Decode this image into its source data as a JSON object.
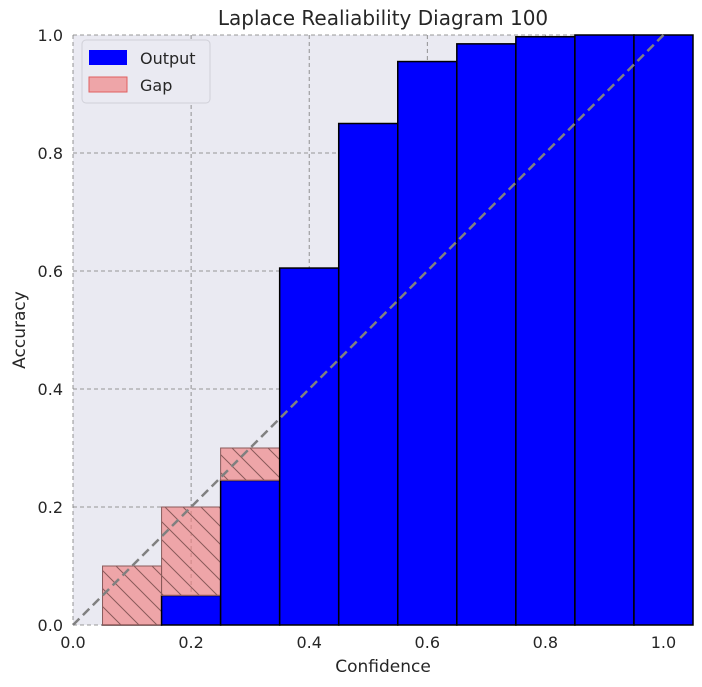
{
  "chart_data": {
    "type": "bar",
    "title": "Laplace Realiability Diagram 100",
    "xlabel": "Confidence",
    "ylabel": "Accuracy",
    "xlim": [
      0.0,
      1.05
    ],
    "ylim": [
      0.0,
      1.0
    ],
    "xticks": [
      "0.0",
      "0.2",
      "0.4",
      "0.6",
      "0.8",
      "1.0"
    ],
    "yticks": [
      "0.0",
      "0.2",
      "0.4",
      "0.6",
      "0.8",
      "1.0"
    ],
    "bin_width": 0.1,
    "bin_centers": [
      0.1,
      0.2,
      0.3,
      0.4,
      0.5,
      0.6,
      0.7,
      0.8,
      0.9,
      1.0
    ],
    "series": [
      {
        "name": "Output",
        "values": [
          0.0,
          0.05,
          0.245,
          0.605,
          0.85,
          0.955,
          0.985,
          0.997,
          1.0,
          1.0
        ],
        "color": "#0000ff"
      },
      {
        "name": "Gap",
        "values": [
          0.1,
          0.15,
          0.055,
          0,
          0,
          0,
          0,
          0,
          0,
          0
        ],
        "color": "#f08080"
      }
    ],
    "reference_line": "diagonal",
    "grid": true,
    "legend_position": "top-left"
  }
}
